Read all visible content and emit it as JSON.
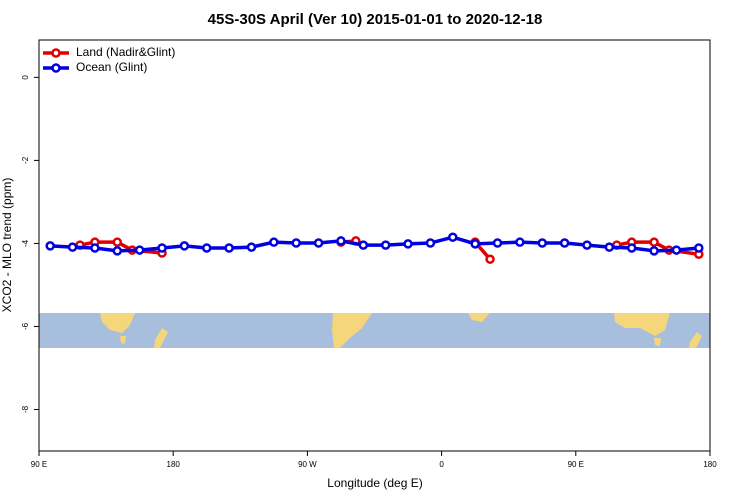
{
  "chart_data": {
    "type": "line",
    "title": "45S-30S April (Ver 10)   2015-01-01 to 2020-12-18",
    "xlabel": "Longitude (deg E)",
    "ylabel": "XCO2 - MLO trend (ppm)",
    "xlim": [
      90,
      540
    ],
    "ylim": [
      -9,
      0.9
    ],
    "xticks": [
      {
        "value": 90,
        "label": "90 E"
      },
      {
        "value": 180,
        "label": "180"
      },
      {
        "value": 270,
        "label": "90 W"
      },
      {
        "value": 360,
        "label": "0"
      },
      {
        "value": 450,
        "label": "90 E"
      },
      {
        "value": 540,
        "label": "180"
      }
    ],
    "yticks": [
      0,
      -2,
      -4,
      -6,
      -8
    ],
    "legend": "top-left",
    "series": [
      {
        "name": "Land (Nadir&Glint)",
        "color": "#e00000",
        "x": [
          117.5,
          127.5,
          142.5,
          152.5,
          172.5,
          232.5,
          292.5,
          302.5,
          342.5,
          382.5,
          392.5,
          442.5,
          477.5,
          487.5,
          502.5,
          512.5,
          532.5
        ],
        "values": [
          -4.04,
          -3.97,
          -3.97,
          -4.16,
          -4.23,
          null,
          -3.97,
          -3.94,
          null,
          -3.97,
          -4.38,
          null,
          -4.04,
          -3.97,
          -3.97,
          -4.16,
          -4.26
        ]
      },
      {
        "name": "Ocean (Glint)",
        "color": "#0000e0",
        "x": [
          97.5,
          112.5,
          127.5,
          142.5,
          157.5,
          172.5,
          187.5,
          202.5,
          217.5,
          232.5,
          247.5,
          262.5,
          277.5,
          292.5,
          307.5,
          322.5,
          337.5,
          352.5,
          367.5,
          382.5,
          397.5,
          412.5,
          427.5,
          442.5,
          457.5,
          472.5,
          487.5,
          502.5,
          517.5,
          532.5
        ],
        "values": [
          -4.06,
          -4.09,
          -4.11,
          -4.18,
          -4.16,
          -4.11,
          -4.06,
          -4.11,
          -4.11,
          -4.09,
          -3.97,
          -3.99,
          -3.99,
          -3.94,
          -4.04,
          -4.04,
          -4.01,
          -3.99,
          -3.85,
          -4.01,
          -3.99,
          -3.97,
          -3.99,
          -3.99,
          -4.04,
          -4.09,
          -4.11,
          -4.18,
          -4.16,
          -4.11
        ]
      }
    ]
  }
}
